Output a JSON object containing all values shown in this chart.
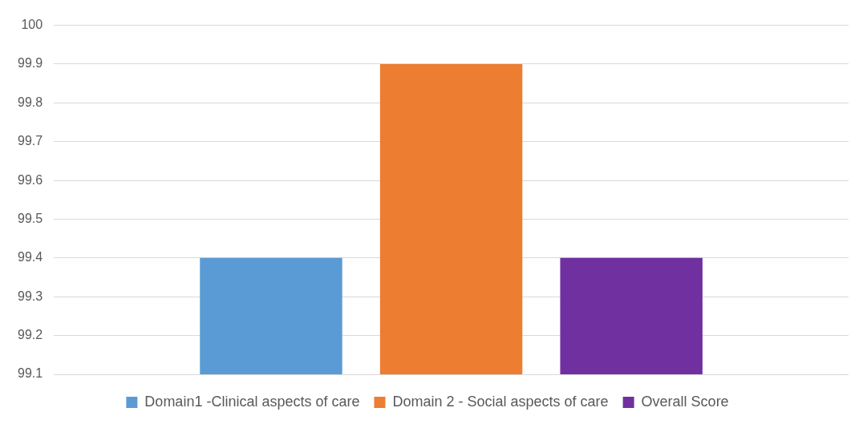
{
  "chart_data": {
    "type": "bar",
    "categories": [
      null
    ],
    "series": [
      {
        "name": "Domain1 -Clinical aspects of care",
        "color": "#5b9bd5",
        "values": [
          99.4
        ]
      },
      {
        "name": "Domain 2 - Social aspects of care",
        "color": "#ed7d31",
        "values": [
          99.9
        ]
      },
      {
        "name": "Overall Score",
        "color": "#7030a0",
        "values": [
          99.4
        ]
      }
    ],
    "ylim": [
      99.1,
      100
    ],
    "yticks": [
      99.1,
      99.2,
      99.3,
      99.4,
      99.5,
      99.6,
      99.7,
      99.8,
      99.9,
      100
    ],
    "grid": "y",
    "legend": "bottom",
    "tick_labels": "y"
  }
}
